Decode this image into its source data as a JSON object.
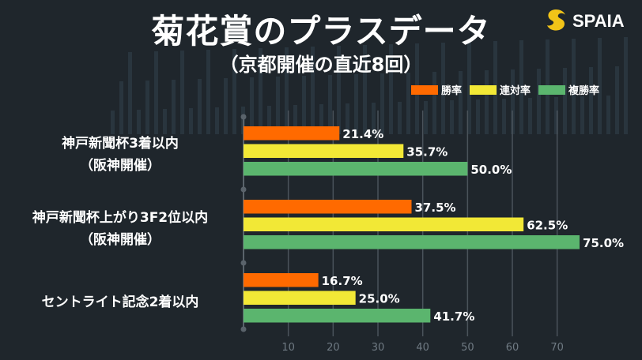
{
  "header": {
    "title": "菊花賞のプラスデータ",
    "subtitle": "（京都開催の直近8回）",
    "logo_text": "SPAIA"
  },
  "chart_data": {
    "type": "bar",
    "orientation": "horizontal",
    "categories": [
      {
        "line1": "神戸新聞杯3着以内",
        "line2": "（阪神開催）"
      },
      {
        "line1": "神戸新聞杯上がり3F2位以内",
        "line2": "（阪神開催）"
      },
      {
        "line1": "セントライト記念2着以内",
        "line2": ""
      }
    ],
    "series": [
      {
        "name": "勝率",
        "color": "#ff6a00",
        "values": [
          21.4,
          37.5,
          16.7
        ],
        "labels": [
          "21.4%",
          "37.5%",
          "16.7%"
        ]
      },
      {
        "name": "連対率",
        "color": "#f2e836",
        "values": [
          35.7,
          62.5,
          25.0
        ],
        "labels": [
          "35.7%",
          "62.5%",
          "25.0%"
        ]
      },
      {
        "name": "複勝率",
        "color": "#5bb56e",
        "values": [
          50.0,
          75.0,
          41.7
        ],
        "labels": [
          "50.0%",
          "75.0%",
          "41.7%"
        ]
      }
    ],
    "xlim": [
      0,
      75
    ],
    "xticks": [
      "10",
      "20",
      "30",
      "40",
      "50",
      "60",
      "70"
    ],
    "grid": true,
    "legend": "top-right"
  }
}
